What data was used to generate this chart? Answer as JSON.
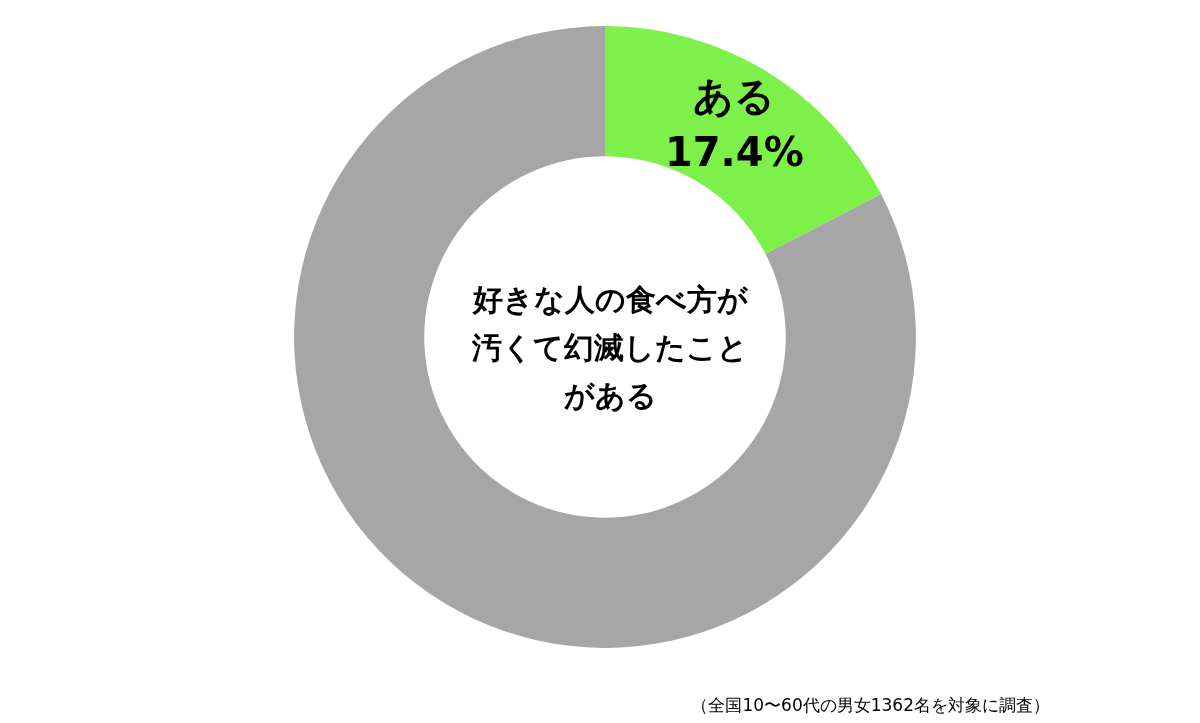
{
  "chart_data": {
    "type": "donut",
    "title": "好きな人の食べ方が汚くて幻滅したことがある",
    "categories": [
      "ある",
      null
    ],
    "values": [
      17.4,
      82.6
    ],
    "colors": [
      "#7ef04a",
      "#a6a6a6"
    ],
    "value_labels": [
      "17.4%",
      null
    ],
    "legend": false,
    "annotations": [
      "（全国10〜60代の男女1362名を対象に調査）"
    ]
  }
}
